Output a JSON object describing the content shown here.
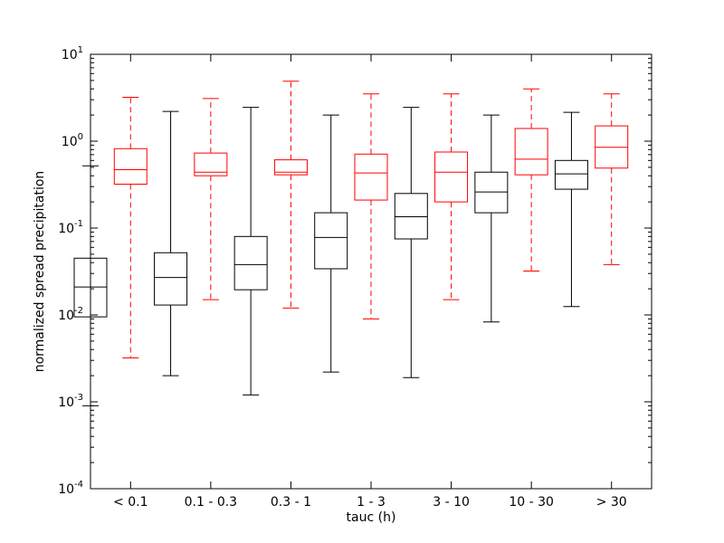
{
  "chart_data": {
    "type": "boxplot",
    "title": "",
    "xlabel": "tauc (h)",
    "ylabel": "normalized spread precipitation",
    "yscale": "log",
    "ylim": [
      0.0001,
      10
    ],
    "y_ticks": [
      {
        "value": 0.0001,
        "base": "10",
        "exp": "-4"
      },
      {
        "value": 0.001,
        "base": "10",
        "exp": "-3"
      },
      {
        "value": 0.01,
        "base": "10",
        "exp": "-2"
      },
      {
        "value": 0.1,
        "base": "10",
        "exp": "-1"
      },
      {
        "value": 1,
        "base": "10",
        "exp": "0"
      },
      {
        "value": 10,
        "base": "10",
        "exp": "1"
      }
    ],
    "categories": [
      "< 0.1",
      "0.1 - 0.3",
      "0.3 - 1",
      "1 - 3",
      "3 - 10",
      "10 - 30",
      "> 30"
    ],
    "grid": false,
    "series": [
      {
        "color": "#000000",
        "whisker_style": "solid",
        "boxes": [
          {
            "whislo": 0.0009,
            "q1": 0.0095,
            "median": 0.021,
            "q3": 0.045,
            "whishi": 0.52
          },
          {
            "whislo": 0.002,
            "q1": 0.013,
            "median": 0.027,
            "q3": 0.052,
            "whishi": 2.2
          },
          {
            "whislo": 0.0012,
            "q1": 0.0195,
            "median": 0.038,
            "q3": 0.08,
            "whishi": 2.45
          },
          {
            "whislo": 0.0022,
            "q1": 0.034,
            "median": 0.078,
            "q3": 0.15,
            "whishi": 2.0
          },
          {
            "whislo": 0.0019,
            "q1": 0.075,
            "median": 0.135,
            "q3": 0.25,
            "whishi": 2.45
          },
          {
            "whislo": 0.0083,
            "q1": 0.15,
            "median": 0.26,
            "q3": 0.44,
            "whishi": 2.0
          },
          {
            "whislo": 0.0125,
            "q1": 0.28,
            "median": 0.42,
            "q3": 0.6,
            "whishi": 2.15
          }
        ]
      },
      {
        "color": "#ff0000",
        "whisker_style": "dashed",
        "boxes": [
          {
            "whislo": 0.0032,
            "q1": 0.32,
            "median": 0.47,
            "q3": 0.82,
            "whishi": 3.2
          },
          {
            "whislo": 0.015,
            "q1": 0.4,
            "median": 0.44,
            "q3": 0.73,
            "whishi": 3.1
          },
          {
            "whislo": 0.012,
            "q1": 0.41,
            "median": 0.44,
            "q3": 0.61,
            "whishi": 4.9
          },
          {
            "whislo": 0.009,
            "q1": 0.21,
            "median": 0.43,
            "q3": 0.71,
            "whishi": 3.5
          },
          {
            "whislo": 0.015,
            "q1": 0.2,
            "median": 0.44,
            "q3": 0.75,
            "whishi": 3.5
          },
          {
            "whislo": 0.032,
            "q1": 0.41,
            "median": 0.62,
            "q3": 1.4,
            "whishi": 4.0
          },
          {
            "whislo": 0.038,
            "q1": 0.49,
            "median": 0.85,
            "q3": 1.5,
            "whishi": 3.5
          }
        ]
      }
    ]
  }
}
